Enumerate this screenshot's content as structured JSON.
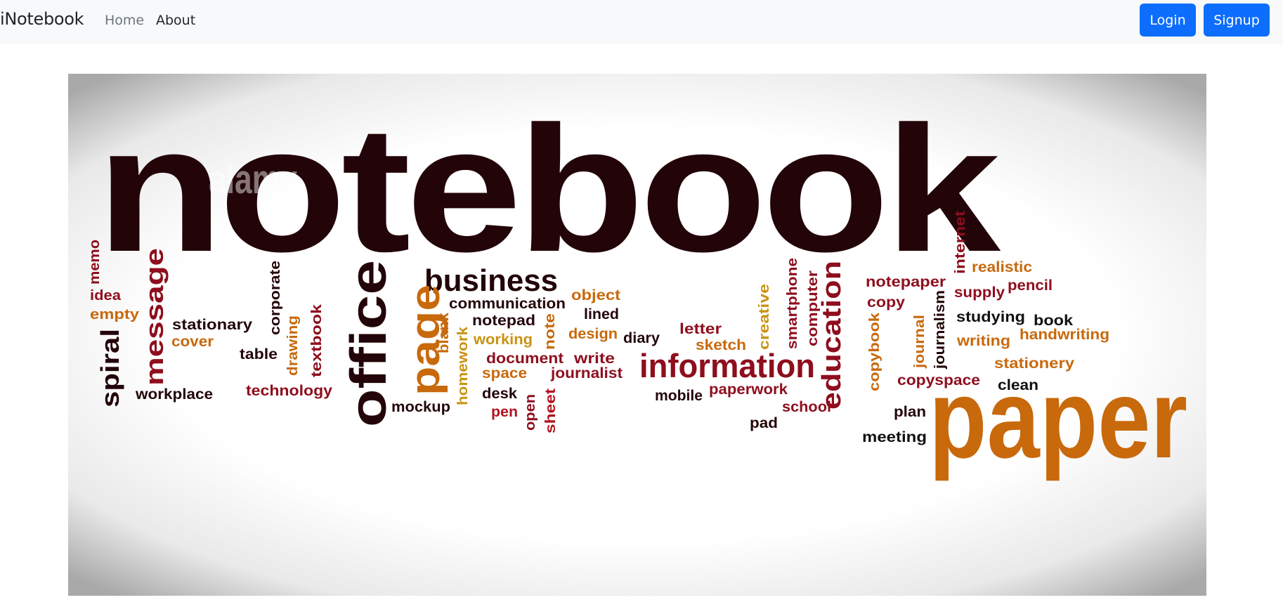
{
  "navbar": {
    "brand": "iNotebook",
    "links": [
      {
        "label": "Home"
      },
      {
        "label": "About"
      }
    ],
    "login_label": "Login",
    "signup_label": "Signup"
  },
  "hero_image": {
    "words": {
      "notebook": "notebook",
      "paper": "paper",
      "information": "information",
      "office": "office",
      "page": "page",
      "business": "business",
      "education": "education",
      "message": "message",
      "spiral": "spiral",
      "memo": "memo",
      "idea": "idea",
      "empty": "empty",
      "stationary": "stationary",
      "cover": "cover",
      "table": "table",
      "workplace": "workplace",
      "technology": "technology",
      "corporate": "corporate",
      "drawing": "drawing",
      "textbook": "textbook",
      "communication": "communication",
      "notepad": "notepad",
      "working": "working",
      "blank": "blank",
      "homework": "homework",
      "note": "note",
      "object": "object",
      "lined": "lined",
      "design": "design",
      "diary": "diary",
      "document": "document",
      "write": "write",
      "space": "space",
      "journalist": "journalist",
      "desk": "desk",
      "mockup": "mockup",
      "pen": "pen",
      "open": "open",
      "sheet": "sheet",
      "letter": "letter",
      "sketch": "sketch",
      "creative": "creative",
      "smartphone": "smartphone",
      "computer": "computer",
      "mobile": "mobile",
      "paperwork": "paperwork",
      "school": "school",
      "pad": "pad",
      "notepaper": "notepaper",
      "copy": "copy",
      "copybook": "copybook",
      "journal": "journal",
      "journalism": "journalism",
      "internet": "internet",
      "realistic": "realistic",
      "supply": "supply",
      "pencil": "pencil",
      "studying": "studying",
      "book": "book",
      "writing": "writing",
      "handwriting": "handwriting",
      "stationery": "stationery",
      "copyspace": "copyspace",
      "clean": "clean",
      "plan": "plan",
      "meeting": "meeting",
      "watermark": "alamy"
    },
    "colors": {
      "dark": "#230509",
      "red": "#8e0e1d",
      "orange": "#c8690c",
      "gold": "#c99313",
      "black": "#111111",
      "bright_red": "#b2151f"
    }
  }
}
